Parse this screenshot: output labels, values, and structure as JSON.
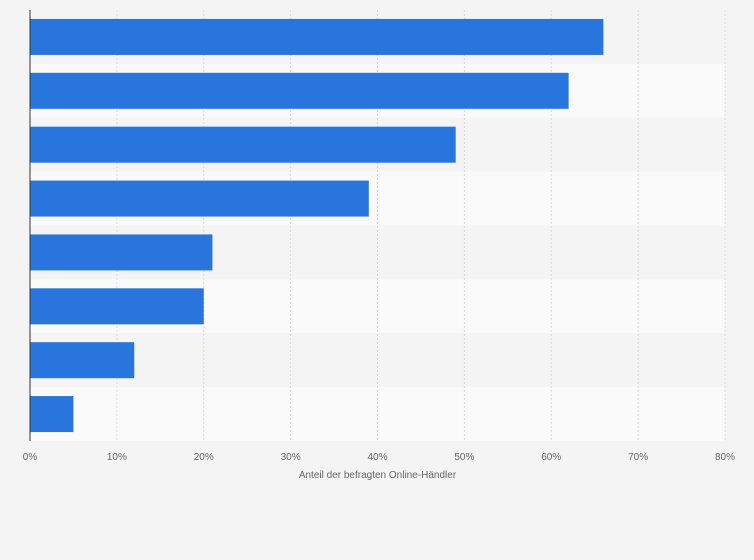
{
  "chart_data": {
    "type": "bar",
    "orientation": "horizontal",
    "xlabel": "Anteil der befragten Online-Händler",
    "xlim": [
      0,
      80
    ],
    "tick_values": [
      0,
      10,
      20,
      30,
      40,
      50,
      60,
      70,
      80
    ],
    "tick_labels": [
      "0%",
      "10%",
      "20%",
      "30%",
      "40%",
      "50%",
      "60%",
      "70%",
      "80%"
    ],
    "values": [
      66,
      62,
      49,
      39,
      21,
      20,
      12,
      5
    ],
    "grid": true,
    "colors": {
      "bar": "#2876dd",
      "background": "#f4f4f4",
      "band_light": "#fafafa",
      "band_dark": "#f4f4f4",
      "grid": "#d9d9d9",
      "axis": "#333333"
    }
  }
}
